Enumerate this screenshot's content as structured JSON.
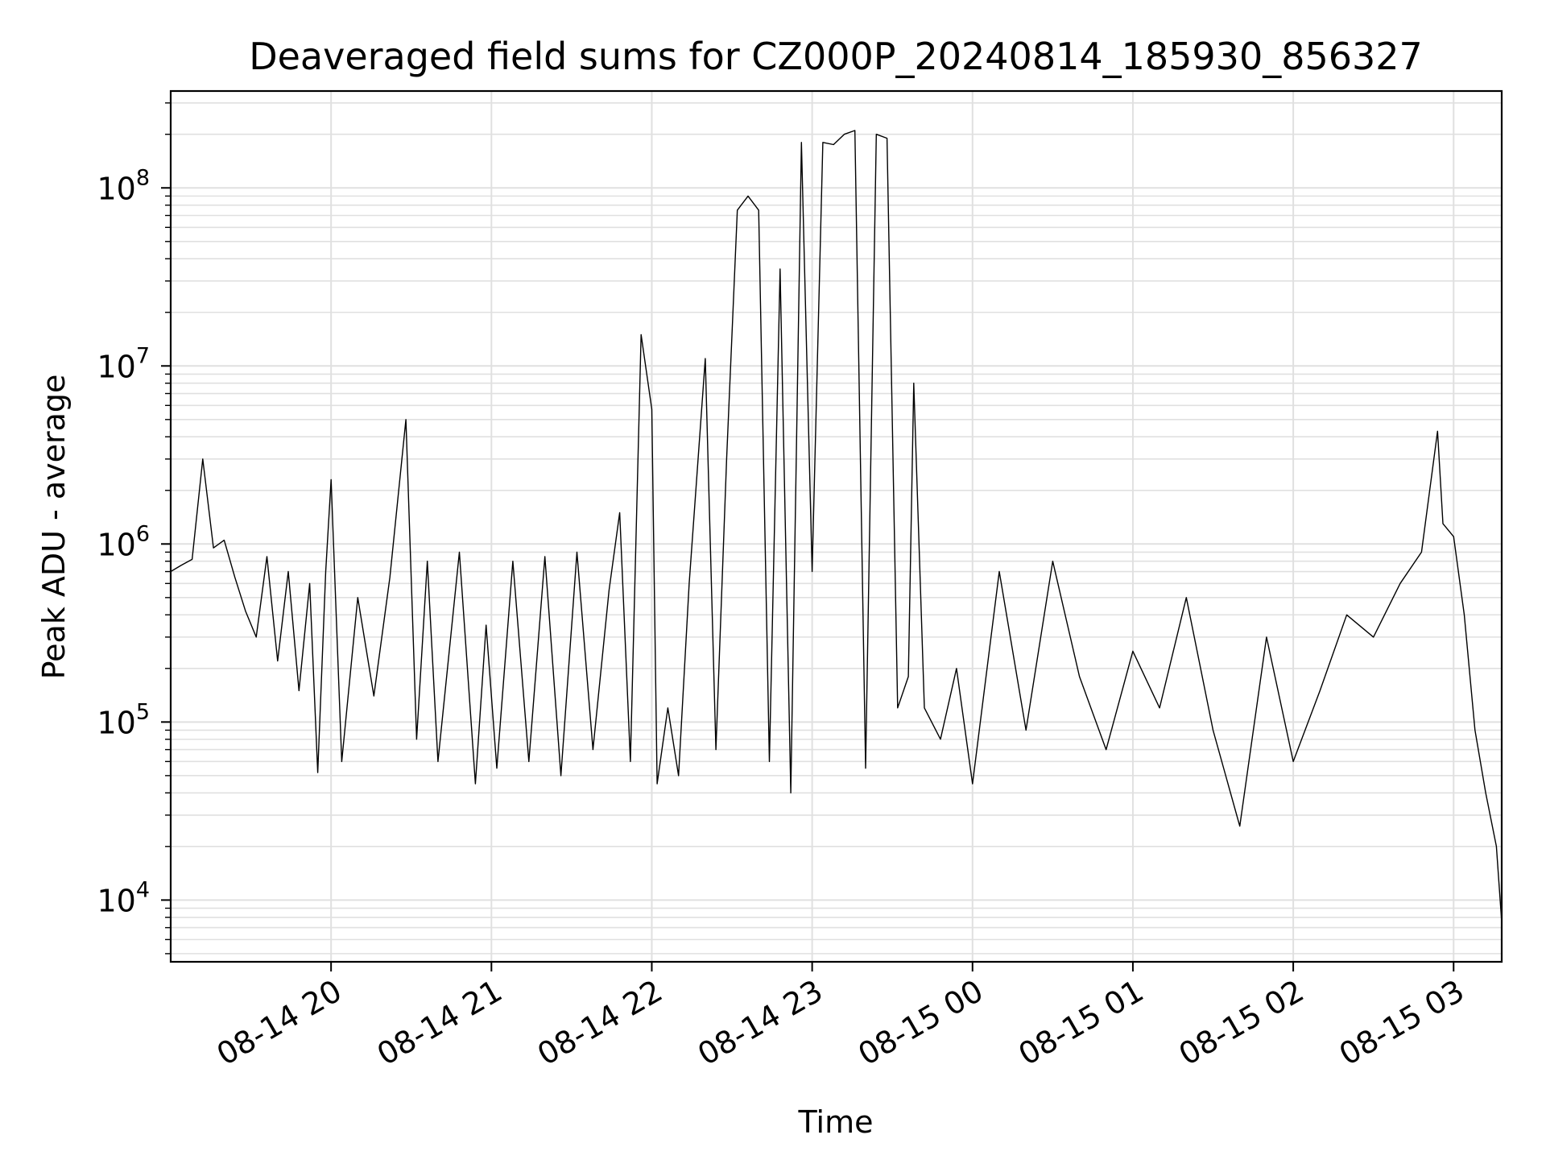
{
  "chart_data": {
    "type": "line",
    "title": "Deaveraged field sums for CZ000P_20240814_185930_856327",
    "xlabel": "Time",
    "ylabel": "Peak ADU - average",
    "y_scale": "log",
    "ylim": [
      4500,
      350000000
    ],
    "xlim": [
      "2024-08-14 19:00",
      "2024-08-15 03:18"
    ],
    "grid": true,
    "legend": "none",
    "line_color": "#000000",
    "grid_color": "#e0e0e0",
    "x_ticks": [
      {
        "t": "2024-08-14 20:00",
        "label": "08-14 20"
      },
      {
        "t": "2024-08-14 21:00",
        "label": "08-14 21"
      },
      {
        "t": "2024-08-14 22:00",
        "label": "08-14 22"
      },
      {
        "t": "2024-08-14 23:00",
        "label": "08-14 23"
      },
      {
        "t": "2024-08-15 00:00",
        "label": "08-15 00"
      },
      {
        "t": "2024-08-15 01:00",
        "label": "08-15 01"
      },
      {
        "t": "2024-08-15 02:00",
        "label": "08-15 02"
      },
      {
        "t": "2024-08-15 03:00",
        "label": "08-15 03"
      }
    ],
    "y_ticks": [
      {
        "value": 10000,
        "base": "10",
        "exp": "4"
      },
      {
        "value": 100000,
        "base": "10",
        "exp": "5"
      },
      {
        "value": 1000000,
        "base": "10",
        "exp": "6"
      },
      {
        "value": 10000000,
        "base": "10",
        "exp": "7"
      },
      {
        "value": 100000000,
        "base": "10",
        "exp": "8"
      }
    ],
    "series": [
      {
        "values": [
          [
            "2024-08-14 19:00",
            700000
          ],
          [
            "2024-08-14 19:04",
            760000
          ],
          [
            "2024-08-14 19:08",
            820000
          ],
          [
            "2024-08-14 19:12",
            3000000
          ],
          [
            "2024-08-14 19:16",
            950000
          ],
          [
            "2024-08-14 19:20",
            1050000
          ],
          [
            "2024-08-14 19:24",
            650000
          ],
          [
            "2024-08-14 19:28",
            420000
          ],
          [
            "2024-08-14 19:32",
            300000
          ],
          [
            "2024-08-14 19:36",
            850000
          ],
          [
            "2024-08-14 19:40",
            220000
          ],
          [
            "2024-08-14 19:44",
            700000
          ],
          [
            "2024-08-14 19:48",
            150000
          ],
          [
            "2024-08-14 19:52",
            600000
          ],
          [
            "2024-08-14 19:55",
            52000
          ],
          [
            "2024-08-14 19:58",
            700000
          ],
          [
            "2024-08-14 20:00",
            2300000
          ],
          [
            "2024-08-14 20:04",
            60000
          ],
          [
            "2024-08-14 20:10",
            500000
          ],
          [
            "2024-08-14 20:16",
            140000
          ],
          [
            "2024-08-14 20:22",
            650000
          ],
          [
            "2024-08-14 20:28",
            5000000
          ],
          [
            "2024-08-14 20:32",
            80000
          ],
          [
            "2024-08-14 20:36",
            800000
          ],
          [
            "2024-08-14 20:40",
            60000
          ],
          [
            "2024-08-14 20:48",
            900000
          ],
          [
            "2024-08-14 20:54",
            45000
          ],
          [
            "2024-08-14 20:58",
            350000
          ],
          [
            "2024-08-14 21:02",
            55000
          ],
          [
            "2024-08-14 21:08",
            800000
          ],
          [
            "2024-08-14 21:14",
            60000
          ],
          [
            "2024-08-14 21:20",
            850000
          ],
          [
            "2024-08-14 21:26",
            50000
          ],
          [
            "2024-08-14 21:32",
            900000
          ],
          [
            "2024-08-14 21:38",
            70000
          ],
          [
            "2024-08-14 21:44",
            550000
          ],
          [
            "2024-08-14 21:48",
            1500000
          ],
          [
            "2024-08-14 21:52",
            60000
          ],
          [
            "2024-08-14 21:56",
            15000000
          ],
          [
            "2024-08-14 22:00",
            5700000
          ],
          [
            "2024-08-14 22:02",
            45000
          ],
          [
            "2024-08-14 22:06",
            120000
          ],
          [
            "2024-08-14 22:10",
            50000
          ],
          [
            "2024-08-14 22:14",
            600000
          ],
          [
            "2024-08-14 22:20",
            11000000
          ],
          [
            "2024-08-14 22:24",
            70000
          ],
          [
            "2024-08-14 22:28",
            3000000
          ],
          [
            "2024-08-14 22:32",
            75000000
          ],
          [
            "2024-08-14 22:36",
            90000000
          ],
          [
            "2024-08-14 22:40",
            75000000
          ],
          [
            "2024-08-14 22:44",
            60000
          ],
          [
            "2024-08-14 22:48",
            35000000
          ],
          [
            "2024-08-14 22:52",
            40000
          ],
          [
            "2024-08-14 22:56",
            180000000
          ],
          [
            "2024-08-14 23:00",
            700000
          ],
          [
            "2024-08-14 23:04",
            180000000
          ],
          [
            "2024-08-14 23:08",
            175000000
          ],
          [
            "2024-08-14 23:12",
            200000000
          ],
          [
            "2024-08-14 23:16",
            210000000
          ],
          [
            "2024-08-14 23:20",
            55000
          ],
          [
            "2024-08-14 23:24",
            200000000
          ],
          [
            "2024-08-14 23:28",
            190000000
          ],
          [
            "2024-08-14 23:32",
            120000
          ],
          [
            "2024-08-14 23:36",
            180000
          ],
          [
            "2024-08-14 23:38",
            8000000
          ],
          [
            "2024-08-14 23:42",
            120000
          ],
          [
            "2024-08-14 23:48",
            80000
          ],
          [
            "2024-08-14 23:54",
            200000
          ],
          [
            "2024-08-15 00:00",
            45000
          ],
          [
            "2024-08-15 00:10",
            700000
          ],
          [
            "2024-08-15 00:20",
            90000
          ],
          [
            "2024-08-15 00:30",
            800000
          ],
          [
            "2024-08-15 00:40",
            180000
          ],
          [
            "2024-08-15 00:50",
            70000
          ],
          [
            "2024-08-15 01:00",
            250000
          ],
          [
            "2024-08-15 01:10",
            120000
          ],
          [
            "2024-08-15 01:20",
            500000
          ],
          [
            "2024-08-15 01:30",
            90000
          ],
          [
            "2024-08-15 01:40",
            26000
          ],
          [
            "2024-08-15 01:50",
            300000
          ],
          [
            "2024-08-15 02:00",
            60000
          ],
          [
            "2024-08-15 02:10",
            150000
          ],
          [
            "2024-08-15 02:20",
            400000
          ],
          [
            "2024-08-15 02:30",
            300000
          ],
          [
            "2024-08-15 02:40",
            600000
          ],
          [
            "2024-08-15 02:48",
            900000
          ],
          [
            "2024-08-15 02:54",
            4300000
          ],
          [
            "2024-08-15 02:56",
            1300000
          ],
          [
            "2024-08-15 03:00",
            1100000
          ],
          [
            "2024-08-15 03:04",
            400000
          ],
          [
            "2024-08-15 03:08",
            90000
          ],
          [
            "2024-08-15 03:12",
            40000
          ],
          [
            "2024-08-15 03:16",
            20000
          ],
          [
            "2024-08-15 03:18",
            7500
          ]
        ]
      }
    ]
  }
}
